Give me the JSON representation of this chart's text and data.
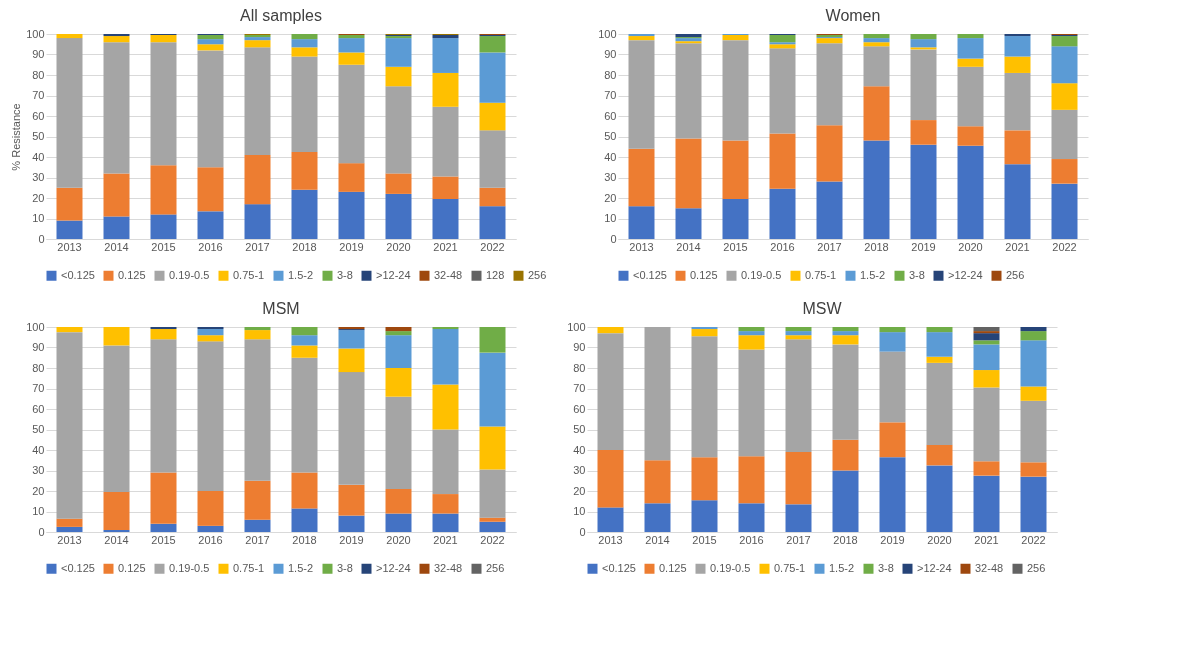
{
  "chart_data": [
    {
      "type": "bar",
      "stacked": true,
      "title": "All samples",
      "ylabel": "% Resistance",
      "ylim": [
        0,
        100
      ],
      "yticks": [
        0,
        10,
        20,
        30,
        40,
        50,
        60,
        70,
        80,
        90,
        100
      ],
      "grid": "y",
      "legend": "bottom",
      "categories": [
        "2013",
        "2014",
        "2015",
        "2016",
        "2017",
        "2018",
        "2019",
        "2020",
        "2021",
        "2022"
      ],
      "series": [
        {
          "name": "<0.125",
          "color": "#4472c4",
          "values": [
            9,
            11,
            12,
            13.5,
            17,
            24,
            23,
            22,
            19.5,
            16
          ]
        },
        {
          "name": "0.125",
          "color": "#ed7d31",
          "values": [
            16,
            21,
            24,
            21.5,
            24,
            18.5,
            14,
            10,
            11,
            9
          ]
        },
        {
          "name": "0.19-0.5",
          "color": "#a5a5a5",
          "values": [
            73,
            64,
            60,
            57,
            52.5,
            46.5,
            48,
            42.5,
            34,
            28
          ]
        },
        {
          "name": "0.75-1",
          "color": "#ffc000",
          "values": [
            2,
            3,
            3.5,
            3,
            3.5,
            4.5,
            6,
            9.5,
            16.5,
            13.5
          ]
        },
        {
          "name": "1.5-2",
          "color": "#5b9bd5",
          "values": [
            null,
            null,
            null,
            2.5,
            1.5,
            4,
            7,
            14,
            17,
            24.5
          ]
        },
        {
          "name": "3-8",
          "color": "#70ad47",
          "values": [
            null,
            null,
            null,
            2,
            1,
            2.5,
            1.5,
            1,
            null,
            8
          ]
        },
        {
          "name": ">12-24",
          "color": "#264478",
          "values": [
            null,
            1,
            0.5,
            0.5,
            null,
            null,
            null,
            0.5,
            1.5,
            0.5
          ]
        },
        {
          "name": "32-48",
          "color": "#9e480e",
          "values": [
            null,
            null,
            null,
            null,
            null,
            null,
            0.5,
            null,
            null,
            0.5
          ]
        },
        {
          "name": "128",
          "color": "#636363",
          "values": [
            null,
            null,
            null,
            null,
            null,
            null,
            null,
            null,
            null,
            null
          ]
        },
        {
          "name": "256",
          "color": "#997300",
          "values": [
            null,
            null,
            null,
            null,
            0.5,
            null,
            null,
            0.5,
            0.5,
            null
          ]
        }
      ]
    },
    {
      "type": "bar",
      "stacked": true,
      "title": "Women",
      "ylim": [
        0,
        100
      ],
      "yticks": [
        0,
        10,
        20,
        30,
        40,
        50,
        60,
        70,
        80,
        90,
        100
      ],
      "grid": "y",
      "legend": "bottom",
      "categories": [
        "2013",
        "2014",
        "2015",
        "2016",
        "2017",
        "2018",
        "2019",
        "2020",
        "2021",
        "2022"
      ],
      "series": [
        {
          "name": "<0.125",
          "color": "#4472c4",
          "values": [
            16,
            15,
            19.5,
            24.5,
            28,
            48,
            46,
            45.5,
            36.5,
            27
          ]
        },
        {
          "name": "0.125",
          "color": "#ed7d31",
          "values": [
            28,
            34,
            28.5,
            27,
            27.5,
            26.5,
            12,
            9.5,
            16.5,
            12
          ]
        },
        {
          "name": "0.19-0.5",
          "color": "#a5a5a5",
          "values": [
            53,
            46.5,
            49,
            41.5,
            40,
            19.5,
            34.5,
            29,
            28,
            24
          ]
        },
        {
          "name": "0.75-1",
          "color": "#ffc000",
          "values": [
            2,
            1,
            2.5,
            2,
            2.5,
            2,
            1,
            4,
            8,
            13
          ]
        },
        {
          "name": "1.5-2",
          "color": "#5b9bd5",
          "values": [
            1,
            1.5,
            0.5,
            1,
            0.5,
            2,
            4,
            10,
            10,
            18
          ]
        },
        {
          "name": "3-8",
          "color": "#70ad47",
          "values": [
            null,
            0.5,
            null,
            3.5,
            1,
            2,
            2.5,
            2,
            null,
            5
          ]
        },
        {
          "name": ">12-24",
          "color": "#264478",
          "values": [
            null,
            1.5,
            null,
            0.5,
            null,
            null,
            null,
            null,
            1,
            0.5
          ]
        },
        {
          "name": "256",
          "color": "#9e480e",
          "values": [
            null,
            null,
            null,
            null,
            0.5,
            null,
            null,
            null,
            null,
            0.5
          ]
        }
      ]
    },
    {
      "type": "bar",
      "stacked": true,
      "title": "MSM",
      "ylim": [
        0,
        100
      ],
      "yticks": [
        0,
        10,
        20,
        30,
        40,
        50,
        60,
        70,
        80,
        90,
        100
      ],
      "grid": "y",
      "legend": "bottom",
      "categories": [
        "2013",
        "2014",
        "2015",
        "2016",
        "2017",
        "2018",
        "2019",
        "2020",
        "2021",
        "2022"
      ],
      "series": [
        {
          "name": "<0.125",
          "color": "#4472c4",
          "values": [
            2.5,
            1,
            4,
            3,
            6,
            11.5,
            8,
            9,
            9,
            5
          ]
        },
        {
          "name": "0.125",
          "color": "#ed7d31",
          "values": [
            4,
            18.5,
            25,
            17,
            19,
            17.5,
            15,
            12,
            9.5,
            2
          ]
        },
        {
          "name": "0.19-0.5",
          "color": "#a5a5a5",
          "values": [
            91,
            71.5,
            65,
            73,
            69,
            56,
            55,
            45,
            31.5,
            23.5
          ]
        },
        {
          "name": "0.75-1",
          "color": "#ffc000",
          "values": [
            2.5,
            9,
            5,
            3,
            4.5,
            6,
            11.5,
            14,
            22,
            21
          ]
        },
        {
          "name": "1.5-2",
          "color": "#5b9bd5",
          "values": [
            null,
            null,
            null,
            3,
            null,
            5,
            9,
            16,
            27,
            36
          ]
        },
        {
          "name": "3-8",
          "color": "#70ad47",
          "values": [
            null,
            null,
            null,
            null,
            1.5,
            4,
            null,
            2,
            1,
            12.5
          ]
        },
        {
          "name": ">12-24",
          "color": "#264478",
          "values": [
            null,
            null,
            1,
            1,
            null,
            null,
            0.5,
            null,
            null,
            null
          ]
        },
        {
          "name": "32-48",
          "color": "#9e480e",
          "values": [
            null,
            null,
            null,
            null,
            null,
            null,
            1,
            2,
            null,
            null
          ]
        },
        {
          "name": "256",
          "color": "#636363",
          "values": [
            null,
            null,
            null,
            null,
            null,
            null,
            null,
            null,
            null,
            null
          ]
        }
      ]
    },
    {
      "type": "bar",
      "stacked": true,
      "title": "MSW",
      "ylim": [
        0,
        100
      ],
      "yticks": [
        0,
        10,
        20,
        30,
        40,
        50,
        60,
        70,
        80,
        90,
        100
      ],
      "grid": "y",
      "legend": "bottom",
      "categories": [
        "2013",
        "2014",
        "2015",
        "2016",
        "2017",
        "2018",
        "2019",
        "2020",
        "2021",
        "2022"
      ],
      "series": [
        {
          "name": "<0.125",
          "color": "#4472c4",
          "values": [
            12,
            14,
            15.5,
            14,
            13.5,
            30,
            36.5,
            32.5,
            27.5,
            27
          ]
        },
        {
          "name": "0.125",
          "color": "#ed7d31",
          "values": [
            28,
            21,
            21,
            23,
            25.5,
            15,
            17,
            10,
            7,
            7
          ]
        },
        {
          "name": "0.19-0.5",
          "color": "#a5a5a5",
          "values": [
            57,
            65,
            59,
            52,
            55,
            46.5,
            34.5,
            40,
            36,
            30
          ]
        },
        {
          "name": "0.75-1",
          "color": "#ffc000",
          "values": [
            3,
            null,
            3.5,
            7,
            2,
            4.5,
            null,
            3,
            8.5,
            7
          ]
        },
        {
          "name": "1.5-2",
          "color": "#5b9bd5",
          "values": [
            null,
            null,
            1,
            2,
            2,
            2,
            9.5,
            12,
            12.5,
            22.5
          ]
        },
        {
          "name": "3-8",
          "color": "#70ad47",
          "values": [
            null,
            null,
            null,
            2,
            2,
            2,
            2.5,
            2.5,
            2,
            4.5
          ]
        },
        {
          "name": ">12-24",
          "color": "#264478",
          "values": [
            null,
            null,
            null,
            null,
            null,
            null,
            null,
            null,
            3.5,
            2
          ]
        },
        {
          "name": "32-48",
          "color": "#9e480e",
          "values": [
            null,
            null,
            null,
            null,
            null,
            null,
            null,
            null,
            1,
            null
          ]
        },
        {
          "name": "256",
          "color": "#636363",
          "values": [
            null,
            null,
            null,
            null,
            null,
            null,
            null,
            null,
            2,
            null
          ]
        }
      ]
    }
  ]
}
